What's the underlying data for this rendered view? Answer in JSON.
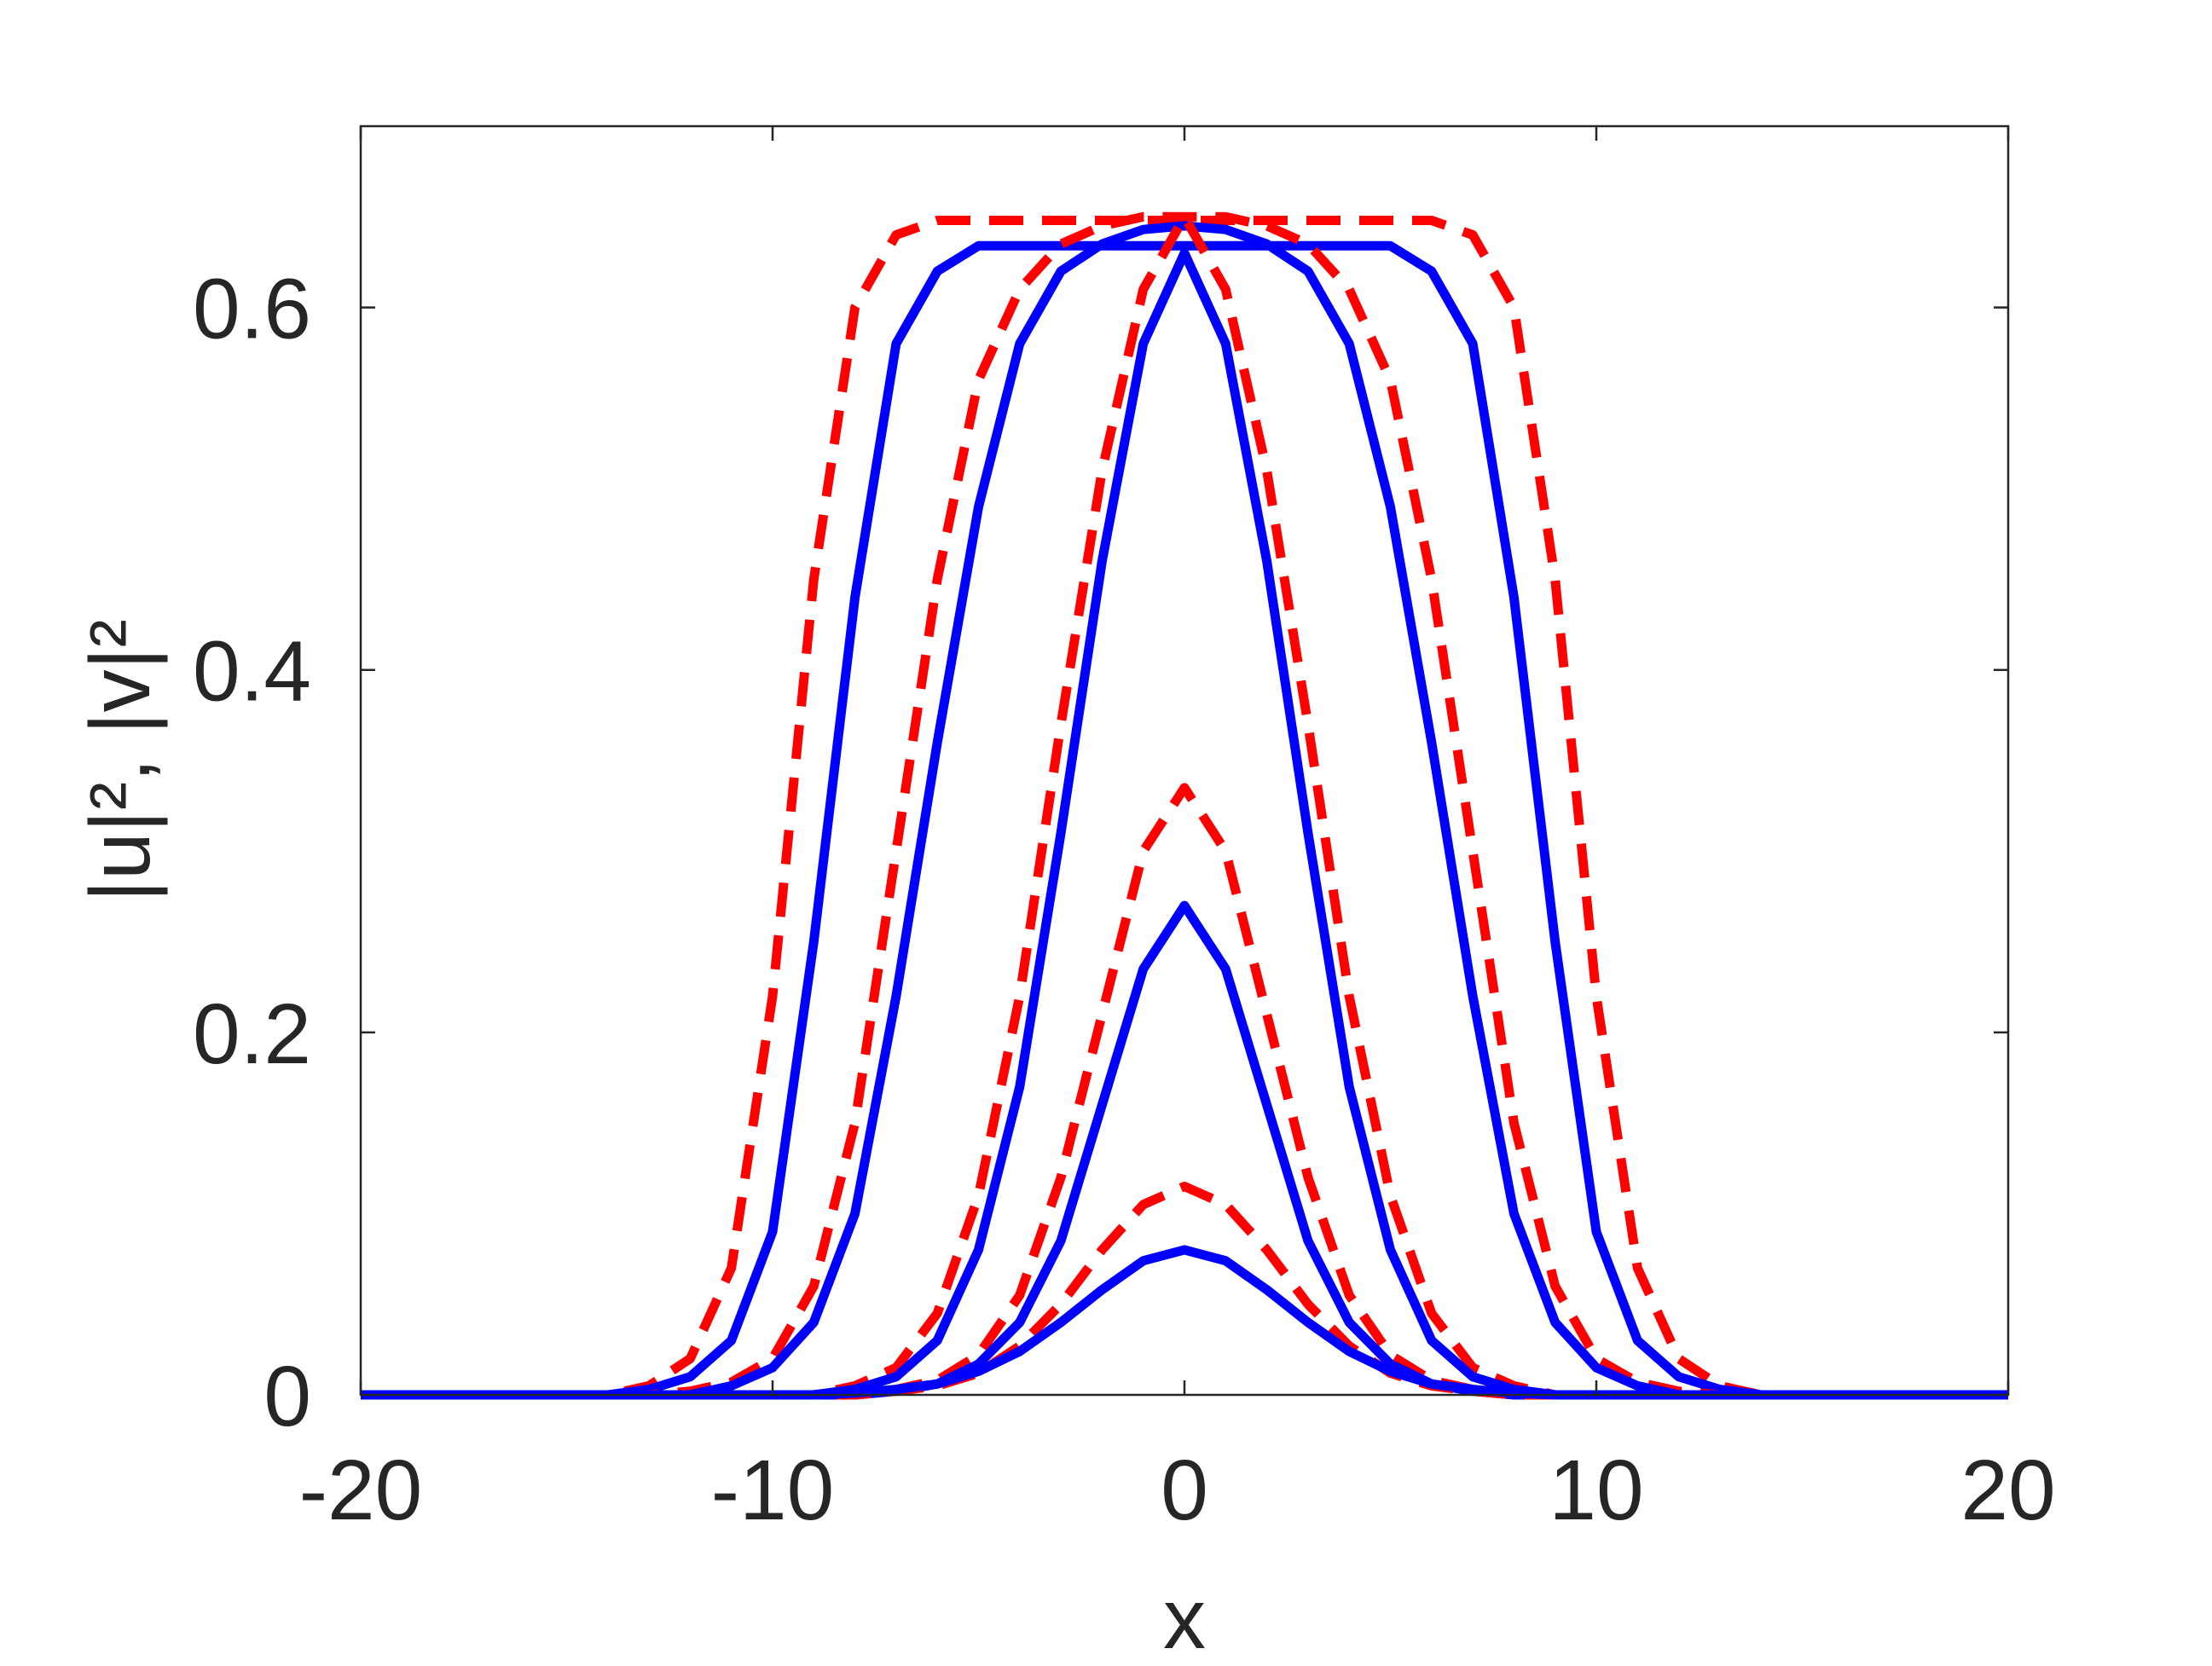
{
  "chart_data": {
    "type": "line",
    "xlabel": "x",
    "ylabel": "|u|², |v|²",
    "x": [
      -20,
      -19,
      -18,
      -17,
      -16,
      -15,
      -14,
      -13,
      -12,
      -11,
      -10,
      -9,
      -8,
      -7,
      -6,
      -5,
      -4,
      -3,
      -2,
      -1,
      0,
      1,
      2,
      3,
      4,
      5,
      6,
      7,
      8,
      9,
      10,
      11,
      12,
      13,
      14,
      15,
      16,
      17,
      18,
      19,
      20
    ],
    "xlim": [
      -20,
      20
    ],
    "xticks": [
      -20,
      -10,
      0,
      10,
      20
    ],
    "ylim": [
      0,
      0.7
    ],
    "yticks": [
      0,
      0.2,
      0.4,
      0.6
    ],
    "series": [
      {
        "color": "#ff0000",
        "style": "dashed",
        "values": [
          0,
          0,
          0,
          0,
          0,
          0,
          0,
          0.005,
          0.02,
          0.07,
          0.22,
          0.45,
          0.6,
          0.64,
          0.648,
          0.648,
          0.648,
          0.648,
          0.648,
          0.648,
          0.648,
          0.648,
          0.648,
          0.648,
          0.648,
          0.648,
          0.648,
          0.64,
          0.6,
          0.45,
          0.22,
          0.07,
          0.02,
          0.005,
          0,
          0,
          0,
          0,
          0,
          0,
          0
        ]
      },
      {
        "color": "#0000ff",
        "style": "solid",
        "values": [
          0,
          0,
          0,
          0,
          0,
          0,
          0,
          0.003,
          0.01,
          0.03,
          0.09,
          0.25,
          0.44,
          0.58,
          0.62,
          0.634,
          0.634,
          0.634,
          0.634,
          0.634,
          0.634,
          0.634,
          0.634,
          0.634,
          0.634,
          0.634,
          0.62,
          0.58,
          0.44,
          0.25,
          0.09,
          0.03,
          0.01,
          0.003,
          0,
          0,
          0,
          0,
          0,
          0,
          0
        ]
      },
      {
        "color": "#ff0000",
        "style": "dashed",
        "values": [
          0,
          0,
          0,
          0,
          0,
          0,
          0,
          0,
          0.002,
          0.007,
          0.02,
          0.06,
          0.15,
          0.3,
          0.45,
          0.56,
          0.61,
          0.635,
          0.645,
          0.65,
          0.65,
          0.65,
          0.645,
          0.635,
          0.61,
          0.56,
          0.45,
          0.3,
          0.15,
          0.06,
          0.02,
          0.007,
          0.002,
          0,
          0,
          0,
          0,
          0,
          0,
          0,
          0
        ]
      },
      {
        "color": "#0000ff",
        "style": "solid",
        "values": [
          0,
          0,
          0,
          0,
          0,
          0,
          0,
          0,
          0,
          0.005,
          0.015,
          0.04,
          0.1,
          0.22,
          0.36,
          0.49,
          0.58,
          0.62,
          0.635,
          0.643,
          0.645,
          0.643,
          0.635,
          0.62,
          0.58,
          0.49,
          0.36,
          0.22,
          0.1,
          0.04,
          0.015,
          0.005,
          0,
          0,
          0,
          0,
          0,
          0,
          0,
          0,
          0
        ]
      },
      {
        "color": "#ff0000",
        "style": "dashed",
        "values": [
          0,
          0,
          0,
          0,
          0,
          0,
          0,
          0,
          0,
          0,
          0,
          0,
          0.005,
          0.015,
          0.045,
          0.11,
          0.22,
          0.37,
          0.51,
          0.61,
          0.65,
          0.61,
          0.51,
          0.37,
          0.22,
          0.11,
          0.045,
          0.015,
          0.005,
          0,
          0,
          0,
          0,
          0,
          0,
          0,
          0,
          0,
          0,
          0,
          0
        ]
      },
      {
        "color": "#0000ff",
        "style": "solid",
        "values": [
          0,
          0,
          0,
          0,
          0,
          0,
          0,
          0,
          0,
          0,
          0,
          0,
          0.003,
          0.01,
          0.03,
          0.08,
          0.17,
          0.31,
          0.46,
          0.58,
          0.63,
          0.58,
          0.46,
          0.31,
          0.17,
          0.08,
          0.03,
          0.01,
          0.003,
          0,
          0,
          0,
          0,
          0,
          0,
          0,
          0,
          0,
          0,
          0,
          0
        ]
      },
      {
        "color": "#ff0000",
        "style": "dashed",
        "values": [
          0,
          0,
          0,
          0,
          0,
          0,
          0,
          0,
          0,
          0,
          0,
          0,
          0,
          0.003,
          0.008,
          0.022,
          0.055,
          0.12,
          0.21,
          0.3,
          0.335,
          0.3,
          0.21,
          0.12,
          0.055,
          0.022,
          0.008,
          0.003,
          0,
          0,
          0,
          0,
          0,
          0,
          0,
          0,
          0,
          0,
          0,
          0,
          0
        ]
      },
      {
        "color": "#0000ff",
        "style": "solid",
        "values": [
          0,
          0,
          0,
          0,
          0,
          0,
          0,
          0,
          0,
          0,
          0,
          0,
          0,
          0.002,
          0.006,
          0.017,
          0.04,
          0.085,
          0.16,
          0.235,
          0.27,
          0.235,
          0.16,
          0.085,
          0.04,
          0.017,
          0.006,
          0.002,
          0,
          0,
          0,
          0,
          0,
          0,
          0,
          0,
          0,
          0,
          0,
          0,
          0
        ]
      },
      {
        "color": "#ff0000",
        "style": "dashed",
        "values": [
          0,
          0,
          0,
          0,
          0,
          0,
          0,
          0,
          0,
          0,
          0,
          0,
          0,
          0.002,
          0.005,
          0.012,
          0.027,
          0.05,
          0.08,
          0.105,
          0.115,
          0.105,
          0.08,
          0.05,
          0.027,
          0.012,
          0.005,
          0.002,
          0,
          0,
          0,
          0,
          0,
          0,
          0,
          0,
          0,
          0,
          0,
          0,
          0
        ]
      },
      {
        "color": "#0000ff",
        "style": "solid",
        "values": [
          0,
          0,
          0,
          0,
          0,
          0,
          0,
          0,
          0,
          0,
          0,
          0,
          0.001,
          0.003,
          0.006,
          0.013,
          0.024,
          0.04,
          0.058,
          0.074,
          0.08,
          0.074,
          0.058,
          0.04,
          0.024,
          0.013,
          0.006,
          0.003,
          0.001,
          0,
          0,
          0,
          0,
          0,
          0,
          0,
          0,
          0,
          0,
          0,
          0
        ]
      }
    ]
  }
}
